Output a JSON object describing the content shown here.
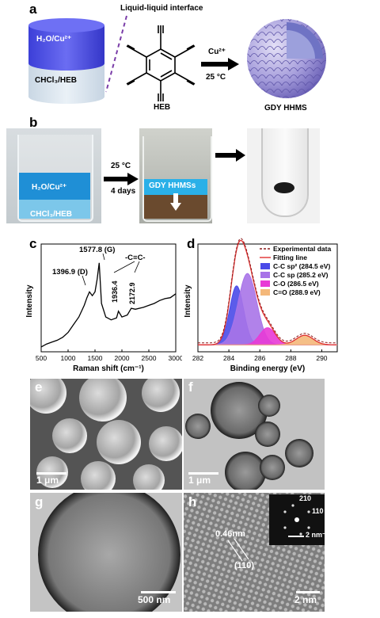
{
  "panel_a": {
    "letter": "a",
    "top_phase": "H₂O/Cu²⁺",
    "bottom_phase": "CHCl₃/HEB",
    "interface_title": "Liquid-liquid interface",
    "molecule_label": "HEB",
    "arrow_top": "Cu²⁺",
    "arrow_bottom": "25 °C",
    "product_label": "GDY HHMS"
  },
  "panel_b": {
    "letter": "b",
    "beaker1_top": "H₂O/Cu²⁺",
    "beaker1_bottom": "CHCl₃/HEB",
    "arrow_top": "25 °C",
    "arrow_bottom": "4 days",
    "beaker2_label": "GDY HHMSs"
  },
  "panel_c": {
    "letter": "c",
    "ylabel": "Intensity",
    "xlabel": "Raman shift (cm⁻¹)",
    "annotations": [
      "1396.9 (D)",
      "1577.8 (G)",
      "-C≡C-",
      "1936.4",
      "2172.9"
    ],
    "chart_data": {
      "type": "line",
      "x": [
        500,
        600,
        700,
        800,
        900,
        1000,
        1100,
        1200,
        1300,
        1350,
        1397,
        1450,
        1500,
        1540,
        1578,
        1620,
        1700,
        1800,
        1900,
        1936,
        2000,
        2100,
        2173,
        2250,
        2400,
        2500,
        2600,
        2700,
        2800,
        2900,
        3000
      ],
      "y": [
        0.05,
        0.08,
        0.1,
        0.12,
        0.15,
        0.2,
        0.28,
        0.36,
        0.48,
        0.56,
        0.62,
        0.58,
        0.62,
        0.75,
        0.92,
        0.5,
        0.36,
        0.33,
        0.35,
        0.42,
        0.36,
        0.38,
        0.45,
        0.44,
        0.46,
        0.48,
        0.5,
        0.53,
        0.55,
        0.56,
        0.6
      ],
      "xlim": [
        500,
        3000
      ],
      "xticks": [
        500,
        1000,
        1500,
        2000,
        2500,
        3000
      ]
    }
  },
  "panel_d": {
    "letter": "d",
    "ylabel": "Intensity",
    "xlabel": "Binding energy (eV)",
    "legend": [
      {
        "label": "Experimental data",
        "color": "#8b1a1a"
      },
      {
        "label": "Fitting line",
        "color": "#e03030"
      },
      {
        "label": "C-C sp² (284.5 eV)",
        "color": "#4a4ae8"
      },
      {
        "label": "C-C sp (285.2 eV)",
        "color": "#a874e8"
      },
      {
        "label": "C-O (286.5 eV)",
        "color": "#e83ad6"
      },
      {
        "label": "C=O (288.9 eV)",
        "color": "#f4b87a"
      }
    ],
    "chart_data": {
      "type": "area",
      "xlim": [
        282,
        291
      ],
      "xticks": [
        282,
        284,
        286,
        288,
        290
      ],
      "series": [
        {
          "name": "C-C sp² (284.5 eV)",
          "center": 284.5,
          "height": 0.62,
          "width": 0.45
        },
        {
          "name": "C-C sp (285.2 eV)",
          "center": 285.2,
          "height": 0.75,
          "width": 0.6
        },
        {
          "name": "C-O (286.5 eV)",
          "center": 286.5,
          "height": 0.18,
          "width": 0.5
        },
        {
          "name": "C=O (288.9 eV)",
          "center": 288.9,
          "height": 0.1,
          "width": 0.55
        }
      ]
    }
  },
  "panel_e": {
    "letter": "e",
    "scale": "1 μm"
  },
  "panel_f": {
    "letter": "f",
    "scale": "1 μm"
  },
  "panel_g": {
    "letter": "g",
    "scale": "500 nm"
  },
  "panel_h": {
    "letter": "h",
    "scale": "2 nm",
    "spacing": "0.46nm",
    "plane": "(110)",
    "fft_210": "210",
    "fft_110": "110",
    "fft_scale": "2 nm⁻¹"
  }
}
